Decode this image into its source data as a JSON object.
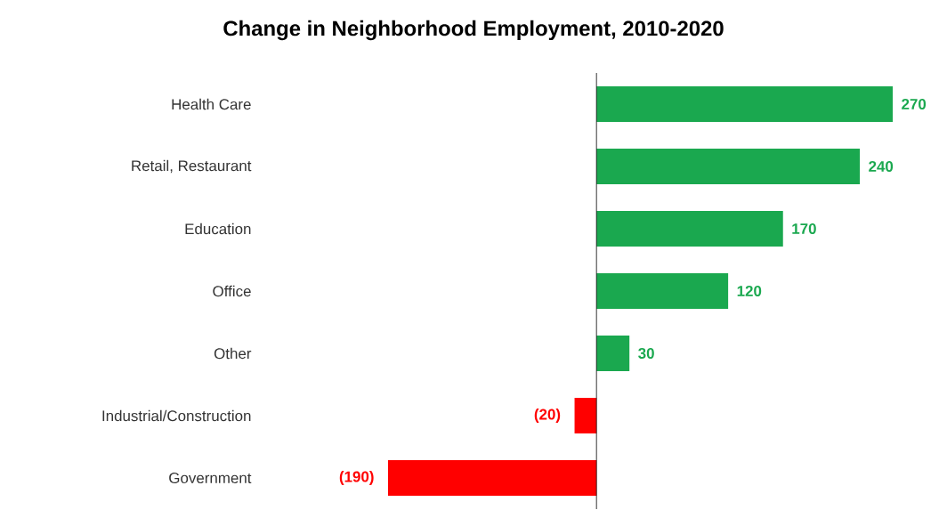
{
  "chart_data": {
    "type": "bar",
    "orientation": "horizontal",
    "title": "Change in Neighborhood Employment, 2010-2020",
    "categories": [
      "Health Care",
      "Retail, Restaurant",
      "Education",
      "Office",
      "Other",
      "Industrial/Construction",
      "Government"
    ],
    "values": [
      270,
      240,
      170,
      120,
      30,
      -20,
      -190
    ],
    "colors": [
      "#1aa84f",
      "#1aa84f",
      "#1aa84f",
      "#1aa84f",
      "#1aa84f",
      "#ff0000",
      "#ff0000"
    ],
    "value_labels": [
      "270",
      "240",
      "170",
      "120",
      "30",
      "(20)",
      "(190)"
    ]
  }
}
